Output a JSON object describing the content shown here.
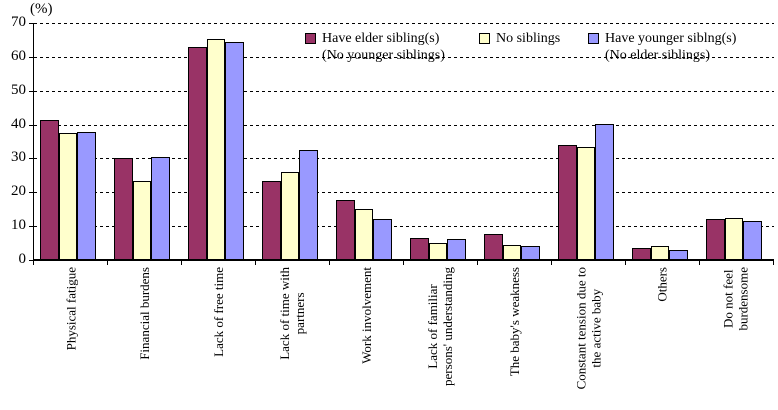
{
  "chart_data": {
    "type": "bar",
    "title": "",
    "unit_label": "(%)",
    "ylim": [
      0,
      70
    ],
    "ytick_step": 10,
    "yticks": [
      0,
      10,
      20,
      30,
      40,
      50,
      60,
      70
    ],
    "grid": "horizontal-dashed",
    "legend_position": "top-inside",
    "categories": [
      [
        "Physical fatigue"
      ],
      [
        "Financial burdens"
      ],
      [
        "Lack of free time"
      ],
      [
        "Lack of time with",
        "partners"
      ],
      [
        "Work involvement"
      ],
      [
        "Lack of familiar",
        "persons' understanding"
      ],
      [
        "The baby's weakness"
      ],
      [
        "Constant tension due to",
        "the active baby"
      ],
      [
        "Others"
      ],
      [
        "Do not feel",
        "burdensome"
      ]
    ],
    "series": [
      {
        "name_lines": [
          "Have elder sibling(s)",
          "(No younger siblings)"
        ],
        "color": "#993366",
        "values": [
          41.3,
          30.1,
          63.0,
          23.2,
          17.6,
          6.5,
          7.8,
          34.1,
          3.6,
          12.0
        ]
      },
      {
        "name_lines": [
          "No siblings"
        ],
        "color": "#FFFFCC",
        "values": [
          37.4,
          23.3,
          65.2,
          26.1,
          15.2,
          5.0,
          4.5,
          33.4,
          4.0,
          12.3
        ]
      },
      {
        "name_lines": [
          "Have younger siblng(s)",
          "(No elder siblings)"
        ],
        "color": "#9999FF",
        "values": [
          37.7,
          30.3,
          64.5,
          32.4,
          12.0,
          6.3,
          4.2,
          40.3,
          3.1,
          11.4
        ]
      }
    ]
  }
}
